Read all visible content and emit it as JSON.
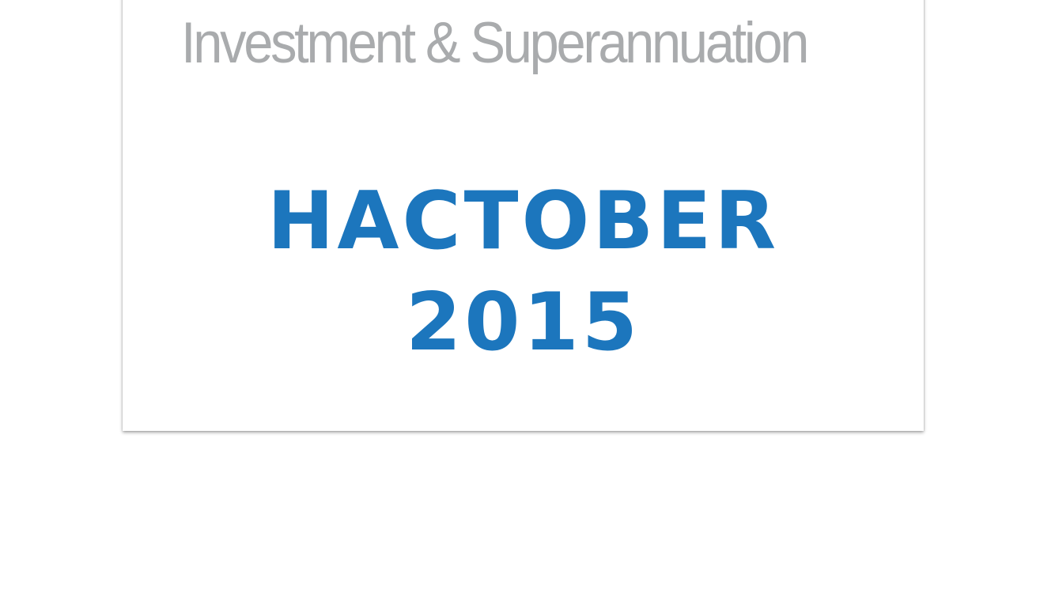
{
  "colors": {
    "brand_blue": "#1c76bd",
    "tagline_gray": "#a9abad",
    "background": "#ffffff"
  },
  "logo": {
    "tagline": "Investment & Superannuation",
    "wordmark_icon": "netwealth-wordmark-logo"
  },
  "title": {
    "line1": "HACTOBER",
    "line2": "2015"
  }
}
